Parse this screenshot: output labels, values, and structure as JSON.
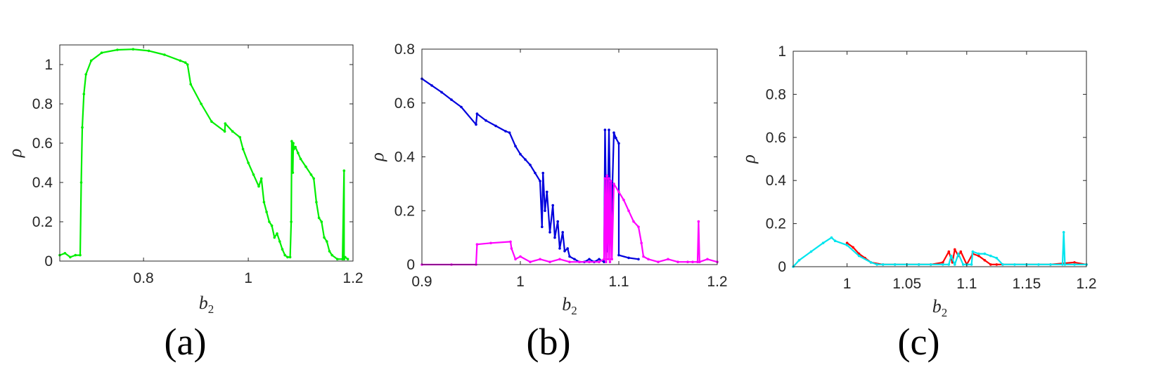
{
  "figure_labels": [
    "(a)",
    "(b)",
    "(c)"
  ],
  "chart_data": [
    {
      "type": "line",
      "panel_label": "(a)",
      "xlabel_main": "b",
      "xlabel_sub": "2",
      "ylabel": "ρ",
      "xlim": [
        0.64,
        1.2
      ],
      "ylim": [
        0,
        1.1
      ],
      "xticks": [
        0.8,
        1,
        1.2
      ],
      "xtick_labels": [
        "0.8",
        "1",
        "1.2"
      ],
      "yticks": [
        0,
        0.2,
        0.4,
        0.6,
        0.8,
        1
      ],
      "ytick_labels": [
        "0",
        "0.2",
        "0.4",
        "0.6",
        "0.8",
        "1"
      ],
      "series": [
        {
          "color": "#00ee00",
          "x": [
            0.64,
            0.65,
            0.66,
            0.67,
            0.679,
            0.681,
            0.683,
            0.686,
            0.69,
            0.7,
            0.72,
            0.75,
            0.78,
            0.81,
            0.84,
            0.87,
            0.88,
            0.884,
            0.89,
            0.91,
            0.93,
            0.955,
            0.956,
            0.97,
            0.984,
            0.99,
            1.0,
            1.01,
            1.02,
            1.025,
            1.03,
            1.035,
            1.04,
            1.045,
            1.05,
            1.055,
            1.06,
            1.065,
            1.07,
            1.075,
            1.08,
            1.082,
            1.083,
            1.085,
            1.086,
            1.087,
            1.09,
            1.095,
            1.1,
            1.11,
            1.12,
            1.125,
            1.13,
            1.135,
            1.14,
            1.145,
            1.15,
            1.155,
            1.16,
            1.17,
            1.18,
            1.183,
            1.183,
            1.185,
            1.19
          ],
          "y": [
            0.03,
            0.04,
            0.02,
            0.03,
            0.03,
            0.4,
            0.68,
            0.85,
            0.95,
            1.02,
            1.06,
            1.075,
            1.078,
            1.07,
            1.05,
            1.02,
            1.01,
            1.0,
            0.9,
            0.8,
            0.71,
            0.66,
            0.7,
            0.66,
            0.63,
            0.57,
            0.5,
            0.44,
            0.38,
            0.42,
            0.3,
            0.25,
            0.2,
            0.18,
            0.12,
            0.14,
            0.1,
            0.06,
            0.03,
            0.02,
            0.02,
            0.2,
            0.61,
            0.45,
            0.6,
            0.57,
            0.58,
            0.55,
            0.52,
            0.48,
            0.44,
            0.42,
            0.3,
            0.22,
            0.2,
            0.12,
            0.1,
            0.05,
            0.03,
            0.01,
            0.01,
            0.46,
            0.01,
            0.02,
            0.01
          ]
        }
      ]
    },
    {
      "type": "line",
      "panel_label": "(b)",
      "xlabel_main": "b",
      "xlabel_sub": "2",
      "ylabel": "ρ",
      "xlim": [
        0.9,
        1.2
      ],
      "ylim": [
        0,
        0.8
      ],
      "xticks": [
        0.9,
        1,
        1.1,
        1.2
      ],
      "xtick_labels": [
        "0.9",
        "1",
        "1.1",
        "1.2"
      ],
      "yticks": [
        0,
        0.2,
        0.4,
        0.6,
        0.8
      ],
      "ytick_labels": [
        "0",
        "0.2",
        "0.4",
        "0.6",
        "0.8"
      ],
      "series": [
        {
          "color": "#0000dd",
          "x": [
            0.9,
            0.91,
            0.92,
            0.93,
            0.94,
            0.955,
            0.956,
            0.965,
            0.975,
            0.985,
            0.989,
            0.995,
            1.0,
            1.005,
            1.01,
            1.015,
            1.02,
            1.022,
            1.023,
            1.025,
            1.027,
            1.03,
            1.033,
            1.035,
            1.038,
            1.04,
            1.043,
            1.045,
            1.048,
            1.05,
            1.055,
            1.06,
            1.065,
            1.07,
            1.075,
            1.08,
            1.085,
            1.086,
            1.088,
            1.09,
            1.092,
            1.095,
            1.097,
            1.1,
            1.1,
            1.11,
            1.12
          ],
          "y": [
            0.69,
            0.665,
            0.64,
            0.612,
            0.585,
            0.52,
            0.56,
            0.535,
            0.515,
            0.495,
            0.49,
            0.44,
            0.41,
            0.39,
            0.37,
            0.34,
            0.31,
            0.14,
            0.34,
            0.2,
            0.27,
            0.12,
            0.22,
            0.1,
            0.16,
            0.06,
            0.12,
            0.05,
            0.06,
            0.03,
            0.02,
            0.01,
            0.01,
            0.02,
            0.01,
            0.02,
            0.01,
            0.5,
            0.05,
            0.5,
            0.1,
            0.49,
            0.47,
            0.45,
            0.035,
            0.025,
            0.02
          ]
        },
        {
          "color": "#ff00ff",
          "x": [
            0.9,
            0.93,
            0.955,
            0.956,
            0.97,
            0.99,
            0.991,
            0.995,
            1.0,
            1.01,
            1.02,
            1.03,
            1.04,
            1.05,
            1.06,
            1.07,
            1.08,
            1.085,
            1.086,
            1.087,
            1.088,
            1.089,
            1.09,
            1.091,
            1.092,
            1.093,
            1.095,
            1.1,
            1.105,
            1.11,
            1.115,
            1.12,
            1.123,
            1.125,
            1.13,
            1.14,
            1.15,
            1.16,
            1.17,
            1.175,
            1.18,
            1.181,
            1.182,
            1.19,
            1.2
          ],
          "y": [
            0.0,
            0.0,
            0.0,
            0.075,
            0.08,
            0.085,
            0.06,
            0.02,
            0.03,
            0.01,
            0.02,
            0.01,
            0.02,
            0.01,
            0.01,
            0.01,
            0.01,
            0.02,
            0.32,
            0.01,
            0.33,
            0.02,
            0.32,
            0.01,
            0.31,
            0.02,
            0.3,
            0.27,
            0.24,
            0.2,
            0.16,
            0.14,
            0.08,
            0.03,
            0.02,
            0.01,
            0.02,
            0.01,
            0.01,
            0.01,
            0.01,
            0.16,
            0.01,
            0.02,
            0.01
          ]
        }
      ]
    },
    {
      "type": "line",
      "panel_label": "(c)",
      "xlabel_main": "b",
      "xlabel_sub": "2",
      "ylabel": "ρ",
      "xlim": [
        0.955,
        1.2
      ],
      "ylim": [
        0,
        1
      ],
      "xticks": [
        1,
        1.05,
        1.1,
        1.15,
        1.2
      ],
      "xtick_labels": [
        "1",
        "1.05",
        "1.1",
        "1.15",
        "1.2"
      ],
      "yticks": [
        0,
        0.2,
        0.4,
        0.6,
        0.8,
        1
      ],
      "ytick_labels": [
        "0",
        "0.2",
        "0.4",
        "0.6",
        "0.8",
        "1"
      ],
      "series": [
        {
          "color": "#ff0000",
          "x": [
            1.0,
            1.005,
            1.01,
            1.015,
            1.02,
            1.03,
            1.04,
            1.05,
            1.06,
            1.07,
            1.08,
            1.085,
            1.088,
            1.09,
            1.093,
            1.095,
            1.1,
            1.105,
            1.11,
            1.115,
            1.12,
            1.125,
            1.13,
            1.15,
            1.17,
            1.19,
            1.2
          ],
          "y": [
            0.11,
            0.09,
            0.06,
            0.04,
            0.02,
            0.01,
            0.01,
            0.01,
            0.01,
            0.01,
            0.02,
            0.07,
            0.02,
            0.08,
            0.05,
            0.07,
            0.01,
            0.06,
            0.05,
            0.03,
            0.01,
            0.01,
            0.01,
            0.01,
            0.01,
            0.02,
            0.01
          ]
        },
        {
          "color": "#00e5ee",
          "x": [
            0.955,
            0.96,
            0.97,
            0.98,
            0.987,
            0.99,
            1.0,
            1.01,
            1.02,
            1.025,
            1.03,
            1.04,
            1.05,
            1.06,
            1.07,
            1.08,
            1.085,
            1.087,
            1.09,
            1.093,
            1.097,
            1.1,
            1.104,
            1.105,
            1.11,
            1.115,
            1.12,
            1.125,
            1.13,
            1.14,
            1.15,
            1.16,
            1.17,
            1.18,
            1.181,
            1.182,
            1.19,
            1.2
          ],
          "y": [
            0.0,
            0.03,
            0.07,
            0.11,
            0.135,
            0.12,
            0.1,
            0.05,
            0.02,
            0.01,
            0.01,
            0.01,
            0.01,
            0.01,
            0.01,
            0.01,
            0.01,
            0.05,
            0.01,
            0.06,
            0.01,
            0.01,
            0.01,
            0.07,
            0.06,
            0.06,
            0.05,
            0.04,
            0.01,
            0.01,
            0.01,
            0.01,
            0.01,
            0.01,
            0.16,
            0.01,
            0.01,
            0.01
          ]
        }
      ]
    }
  ]
}
